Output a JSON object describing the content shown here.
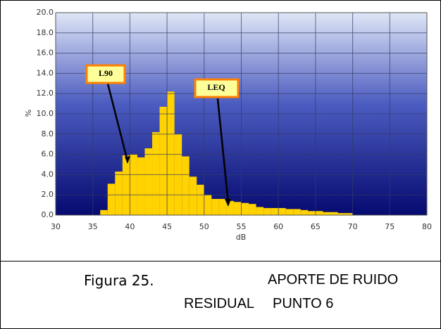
{
  "chart_data": {
    "type": "histogram",
    "bins": [
      36,
      37,
      38,
      39,
      40,
      41,
      42,
      43,
      44,
      45,
      46,
      47,
      48,
      49,
      50,
      51,
      52,
      53,
      54,
      55,
      56,
      57,
      58,
      59,
      60,
      61,
      62,
      63,
      64,
      65,
      66,
      67,
      68,
      69,
      70
    ],
    "values": [
      0.5,
      3.1,
      4.3,
      5.9,
      6.0,
      5.7,
      6.6,
      8.2,
      10.7,
      12.2,
      8.0,
      5.8,
      3.8,
      3.0,
      2.0,
      1.6,
      1.6,
      1.4,
      1.3,
      1.2,
      1.1,
      0.8,
      0.7,
      0.7,
      0.7,
      0.6,
      0.6,
      0.5,
      0.4,
      0.4,
      0.3,
      0.3,
      0.2,
      0.2
    ],
    "color": "#ffd200",
    "xlabel": "dB",
    "ylabel": "%",
    "xlim": [
      30,
      80
    ],
    "xticks": [
      30,
      35,
      40,
      45,
      50,
      55,
      60,
      65,
      70,
      75,
      80
    ],
    "ylim": [
      0,
      20
    ],
    "yticks": [
      {
        "value": 0,
        "label": "0.0"
      },
      {
        "value": 2,
        "label": "2.0"
      },
      {
        "value": 4,
        "label": "4.0"
      },
      {
        "value": 6,
        "label": "6.0"
      },
      {
        "value": 8,
        "label": "8.0"
      },
      {
        "value": 10,
        "label": "10.0"
      },
      {
        "value": 12,
        "label": "12.0"
      },
      {
        "value": 14,
        "label": "14.0"
      },
      {
        "value": 16,
        "label": "16.0"
      },
      {
        "value": 18,
        "label": "18.0"
      },
      {
        "value": 20,
        "label": "20.0"
      }
    ],
    "grid": true,
    "annotations": [
      "L90",
      "LEQ"
    ]
  },
  "caption": [
    "Figura 25.",
    "APORTE DE RUIDO",
    "RESIDUAL",
    "PUNTO 6"
  ]
}
